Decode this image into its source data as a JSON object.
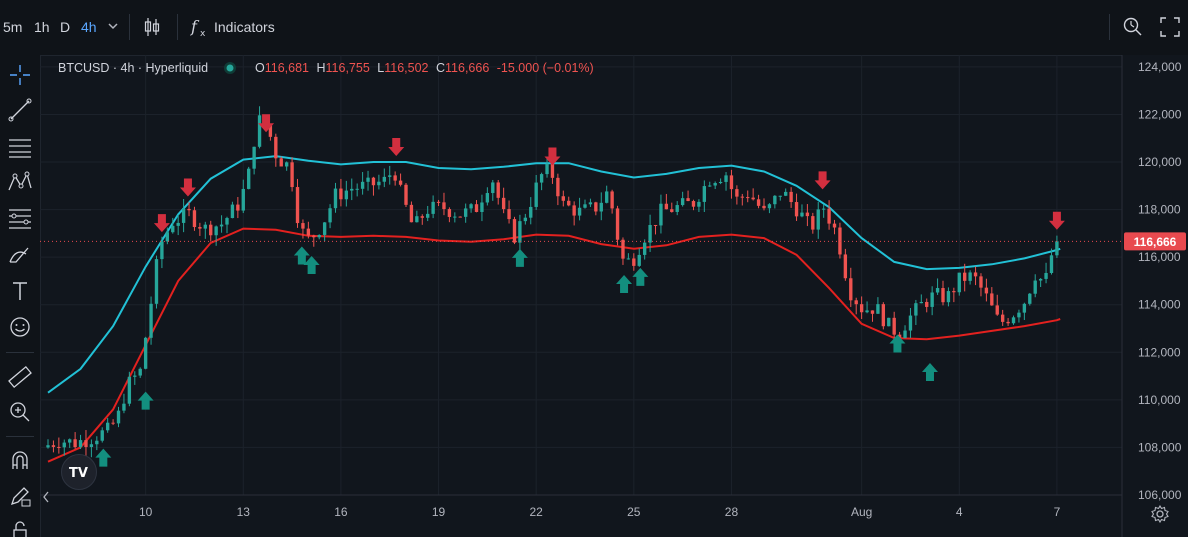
{
  "topbar": {
    "intervals": [
      "5m",
      "1h",
      "D",
      "4h"
    ],
    "active_interval": "4h",
    "indicators_label": "Indicators"
  },
  "legend": {
    "title": "BTCUSD · 4h · Hyperliquid",
    "o_label": "O",
    "o_value": "116,681",
    "h_label": "H",
    "h_value": "116,755",
    "l_label": "L",
    "l_value": "116,502",
    "c_label": "C",
    "c_value": "116,666",
    "change": "-15.000 (−0.01%)"
  },
  "colors": {
    "background": "#11161d",
    "up": "#26a69a",
    "down": "#ef5350",
    "upper_band": "#22c1d6",
    "lower_band": "#e3211f",
    "buy_arrow": "#138f7f",
    "sell_arrow": "#d32f3f",
    "price_label_bg": "#e84a4f"
  },
  "chart_data": {
    "type": "candlestick",
    "symbol": "BTCUSD",
    "interval": "4h",
    "exchange": "Hyperliquid",
    "ylim": [
      106000,
      124500
    ],
    "xlim": [
      7.0,
      40.0
    ],
    "y_ticks": [
      "106,000",
      "108,000",
      "110,000",
      "112,000",
      "114,000",
      "116,000",
      "118,000",
      "120,000",
      "122,000",
      "124,000"
    ],
    "y_tick_values": [
      106000,
      108000,
      110000,
      112000,
      114000,
      116000,
      118000,
      120000,
      122000,
      124000
    ],
    "x_ticks": [
      {
        "label": "10",
        "day": 10
      },
      {
        "label": "13",
        "day": 13
      },
      {
        "label": "16",
        "day": 16
      },
      {
        "label": "19",
        "day": 19
      },
      {
        "label": "22",
        "day": 22
      },
      {
        "label": "25",
        "day": 25
      },
      {
        "label": "28",
        "day": 28
      },
      {
        "label": "Aug",
        "day": 32
      },
      {
        "label": "4",
        "day": 35
      },
      {
        "label": "7",
        "day": 38
      }
    ],
    "last_price": 116666,
    "last_price_label": "116,666",
    "price_path": [
      [
        7.0,
        108000
      ],
      [
        7.5,
        108300
      ],
      [
        8.0,
        108200
      ],
      [
        8.5,
        108400
      ],
      [
        9.0,
        108700
      ],
      [
        9.3,
        109200
      ],
      [
        9.6,
        110600
      ],
      [
        10.0,
        111200
      ],
      [
        10.3,
        113800
      ],
      [
        10.6,
        116500
      ],
      [
        11.0,
        117500
      ],
      [
        11.5,
        117800
      ],
      [
        12.0,
        117200
      ],
      [
        12.5,
        117400
      ],
      [
        13.0,
        118200
      ],
      [
        13.3,
        119200
      ],
      [
        13.6,
        121800
      ],
      [
        13.9,
        121500
      ],
      [
        14.2,
        120200
      ],
      [
        14.6,
        119800
      ],
      [
        14.9,
        117200
      ],
      [
        15.2,
        116700
      ],
      [
        15.6,
        117400
      ],
      [
        16.0,
        118600
      ],
      [
        16.5,
        118900
      ],
      [
        17.0,
        119000
      ],
      [
        17.5,
        119200
      ],
      [
        17.8,
        119700
      ],
      [
        18.0,
        118700
      ],
      [
        18.4,
        117200
      ],
      [
        18.8,
        118000
      ],
      [
        19.3,
        118100
      ],
      [
        19.8,
        117800
      ],
      [
        20.3,
        118000
      ],
      [
        20.8,
        119400
      ],
      [
        21.2,
        117600
      ],
      [
        21.5,
        116900
      ],
      [
        21.9,
        118000
      ],
      [
        22.3,
        119400
      ],
      [
        22.6,
        119700
      ],
      [
        23.0,
        118200
      ],
      [
        23.5,
        117900
      ],
      [
        24.0,
        118100
      ],
      [
        24.4,
        118800
      ],
      [
        24.8,
        115900
      ],
      [
        25.1,
        115800
      ],
      [
        25.5,
        116900
      ],
      [
        26.0,
        117900
      ],
      [
        26.5,
        118100
      ],
      [
        27.0,
        118300
      ],
      [
        27.5,
        119300
      ],
      [
        28.0,
        119500
      ],
      [
        28.3,
        118400
      ],
      [
        28.7,
        118700
      ],
      [
        29.2,
        117800
      ],
      [
        29.7,
        118800
      ],
      [
        30.2,
        118000
      ],
      [
        30.6,
        117200
      ],
      [
        31.0,
        118100
      ],
      [
        31.4,
        117000
      ],
      [
        31.8,
        114600
      ],
      [
        32.2,
        113800
      ],
      [
        32.6,
        113900
      ],
      [
        33.0,
        113100
      ],
      [
        33.3,
        112800
      ],
      [
        33.6,
        113400
      ],
      [
        34.0,
        114000
      ],
      [
        34.4,
        114400
      ],
      [
        34.8,
        114300
      ],
      [
        35.2,
        115100
      ],
      [
        35.6,
        115200
      ],
      [
        36.0,
        114300
      ],
      [
        36.4,
        113200
      ],
      [
        36.8,
        113600
      ],
      [
        37.2,
        114200
      ],
      [
        37.5,
        115300
      ],
      [
        37.8,
        114900
      ],
      [
        38.1,
        116666
      ]
    ],
    "upper_band": [
      [
        7.0,
        110300
      ],
      [
        8.0,
        111300
      ],
      [
        9.0,
        113100
      ],
      [
        10.0,
        115600
      ],
      [
        11.0,
        117800
      ],
      [
        12.0,
        119300
      ],
      [
        13.0,
        120100
      ],
      [
        14.0,
        120250
      ],
      [
        15.0,
        120050
      ],
      [
        16.0,
        119900
      ],
      [
        17.0,
        120000
      ],
      [
        18.0,
        120000
      ],
      [
        19.0,
        119750
      ],
      [
        20.0,
        119700
      ],
      [
        21.0,
        119800
      ],
      [
        22.0,
        119950
      ],
      [
        23.0,
        119950
      ],
      [
        24.0,
        119600
      ],
      [
        25.0,
        119350
      ],
      [
        26.0,
        119500
      ],
      [
        27.0,
        119750
      ],
      [
        28.0,
        119850
      ],
      [
        29.0,
        119600
      ],
      [
        30.0,
        119000
      ],
      [
        31.0,
        118100
      ],
      [
        32.0,
        116800
      ],
      [
        33.0,
        115800
      ],
      [
        34.0,
        115500
      ],
      [
        35.0,
        115550
      ],
      [
        36.0,
        115700
      ],
      [
        37.0,
        115950
      ],
      [
        38.0,
        116300
      ],
      [
        38.1,
        116350
      ]
    ],
    "lower_band": [
      [
        7.0,
        107400
      ],
      [
        8.0,
        108000
      ],
      [
        9.0,
        109600
      ],
      [
        10.0,
        112300
      ],
      [
        11.0,
        115000
      ],
      [
        12.0,
        116600
      ],
      [
        13.0,
        117200
      ],
      [
        14.0,
        117150
      ],
      [
        15.0,
        116900
      ],
      [
        16.0,
        116850
      ],
      [
        17.0,
        116900
      ],
      [
        18.0,
        116850
      ],
      [
        19.0,
        116700
      ],
      [
        20.0,
        116650
      ],
      [
        21.0,
        116750
      ],
      [
        22.0,
        116950
      ],
      [
        23.0,
        116900
      ],
      [
        24.0,
        116550
      ],
      [
        25.0,
        116350
      ],
      [
        26.0,
        116500
      ],
      [
        27.0,
        116850
      ],
      [
        28.0,
        116950
      ],
      [
        29.0,
        116800
      ],
      [
        30.0,
        116100
      ],
      [
        31.0,
        114700
      ],
      [
        32.0,
        113200
      ],
      [
        33.0,
        112600
      ],
      [
        34.0,
        112550
      ],
      [
        35.0,
        112700
      ],
      [
        36.0,
        112900
      ],
      [
        37.0,
        113100
      ],
      [
        38.0,
        113350
      ],
      [
        38.1,
        113400
      ]
    ],
    "buy_signals": [
      {
        "day": 8.7,
        "price": 108200
      },
      {
        "day": 10.0,
        "price": 110600
      },
      {
        "day": 14.8,
        "price": 116700
      },
      {
        "day": 15.1,
        "price": 116300
      },
      {
        "day": 21.5,
        "price": 116600
      },
      {
        "day": 24.7,
        "price": 115500
      },
      {
        "day": 25.2,
        "price": 115800
      },
      {
        "day": 33.1,
        "price": 113000
      },
      {
        "day": 34.1,
        "price": 111800
      }
    ],
    "sell_signals": [
      {
        "day": 10.5,
        "price": 116800
      },
      {
        "day": 11.3,
        "price": 118300
      },
      {
        "day": 13.7,
        "price": 121000
      },
      {
        "day": 17.7,
        "price": 120000
      },
      {
        "day": 22.5,
        "price": 119600
      },
      {
        "day": 30.8,
        "price": 118600
      },
      {
        "day": 38.0,
        "price": 116900
      }
    ]
  }
}
